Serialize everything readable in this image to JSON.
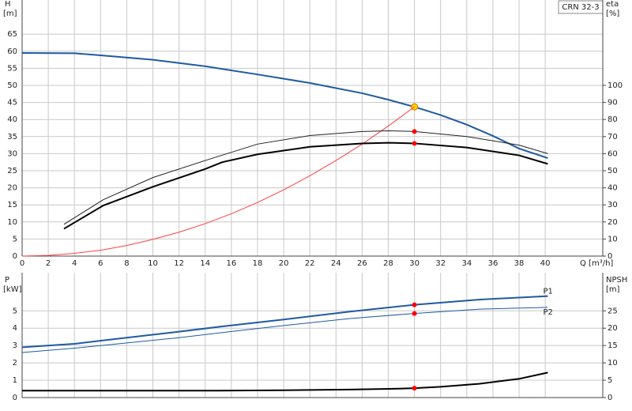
{
  "chart_data": [
    {
      "type": "line",
      "legend_label": "CRN 32-3",
      "x_label": "Q [m³/h]",
      "y_label": "H",
      "y_unit": "[m]",
      "y2_label": "eta",
      "y2_unit": "[%]",
      "xlim": [
        0,
        44.4
      ],
      "xticks": [
        0,
        2,
        4,
        6,
        8,
        10,
        12,
        14,
        16,
        18,
        20,
        22,
        24,
        26,
        28,
        30,
        32,
        34,
        36,
        38,
        40
      ],
      "ylim": [
        0,
        75
      ],
      "yticks": [
        0,
        5,
        10,
        15,
        20,
        25,
        30,
        35,
        40,
        45,
        50,
        55,
        60,
        65
      ],
      "y2lim": [
        0,
        150
      ],
      "y2ticks": [
        0,
        10,
        20,
        30,
        40,
        50,
        60,
        70,
        80,
        90,
        100
      ],
      "grid": true,
      "duty_q": 30,
      "series": [
        {
          "color": "#1f5aa0",
          "marker_color": "#ffd700",
          "x": [
            0,
            4,
            6,
            10,
            14,
            15.3,
            18,
            22,
            26,
            28,
            30,
            32,
            34,
            36,
            38,
            40.2
          ],
          "values": [
            59.5,
            59.4,
            58.8,
            57.5,
            55.6,
            54.8,
            53.2,
            50.7,
            47.7,
            45.8,
            43.7,
            41.3,
            38.5,
            35.2,
            31.5,
            28.7
          ]
        },
        {
          "color": "#ff4040",
          "x": [
            0,
            2,
            4,
            6,
            8,
            10,
            12,
            14,
            16,
            18,
            20,
            22,
            24,
            26,
            28,
            30
          ],
          "values": [
            0,
            0.2,
            0.8,
            1.7,
            3.1,
            4.9,
            7,
            9.5,
            12.4,
            15.7,
            19.4,
            23.5,
            28,
            32.8,
            38.1,
            43.7
          ]
        },
        {
          "color": "#222222",
          "marker_color": "#ff0000",
          "axis": "y2",
          "x": [
            3.2,
            6.2,
            10,
            14,
            18,
            22,
            26,
            28,
            30,
            34,
            38,
            40.2
          ],
          "values": [
            18.6,
            33,
            46,
            56,
            65.6,
            70.6,
            73,
            73.4,
            73,
            70,
            65,
            60
          ]
        },
        {
          "color": "#000000",
          "marker_color": "#ff0000",
          "axis": "y2",
          "x": [
            3.2,
            6.2,
            10,
            14,
            15.3,
            18,
            22,
            26,
            28,
            30,
            34,
            38,
            40.2
          ],
          "values": [
            16,
            29.6,
            40.6,
            51,
            55,
            59.6,
            64,
            66,
            66.4,
            66,
            63.6,
            59,
            54
          ]
        }
      ]
    },
    {
      "type": "line",
      "y_label": "P",
      "y_unit": "[kW]",
      "y2_label": "NPSH",
      "y2_unit": "[m]",
      "xlim": [
        0,
        44.4
      ],
      "ylim": [
        0,
        7.2
      ],
      "yticks": [
        0,
        1,
        2,
        3,
        4,
        5
      ],
      "y2lim": [
        0,
        36
      ],
      "y2ticks": [
        0,
        5,
        10,
        15,
        20,
        25
      ],
      "grid": true,
      "duty_q": 30,
      "series": [
        {
          "name": "P1",
          "color": "#1f5aa0",
          "marker_color": "#ff0000",
          "x": [
            0,
            4,
            8,
            12,
            15.3,
            20,
            25,
            30,
            35,
            40.2
          ],
          "values": [
            2.9,
            3.1,
            3.45,
            3.8,
            4.1,
            4.5,
            4.95,
            5.35,
            5.65,
            5.85
          ]
        },
        {
          "name": "P2",
          "color": "#1f5aa0",
          "marker_color": "#ff0000",
          "x": [
            0,
            4,
            8,
            12,
            15.3,
            20,
            25,
            30,
            35,
            40.2
          ],
          "values": [
            2.6,
            2.85,
            3.15,
            3.45,
            3.75,
            4.15,
            4.55,
            4.85,
            5.1,
            5.2
          ]
        },
        {
          "color": "#000000",
          "marker_color": "#ff0000",
          "axis": "y2",
          "x": [
            0,
            15,
            20,
            25,
            28,
            30,
            32,
            35,
            38,
            40.2
          ],
          "values": [
            2,
            2,
            2.1,
            2.3,
            2.5,
            2.7,
            3.1,
            4,
            5.4,
            7.2
          ]
        }
      ]
    }
  ]
}
